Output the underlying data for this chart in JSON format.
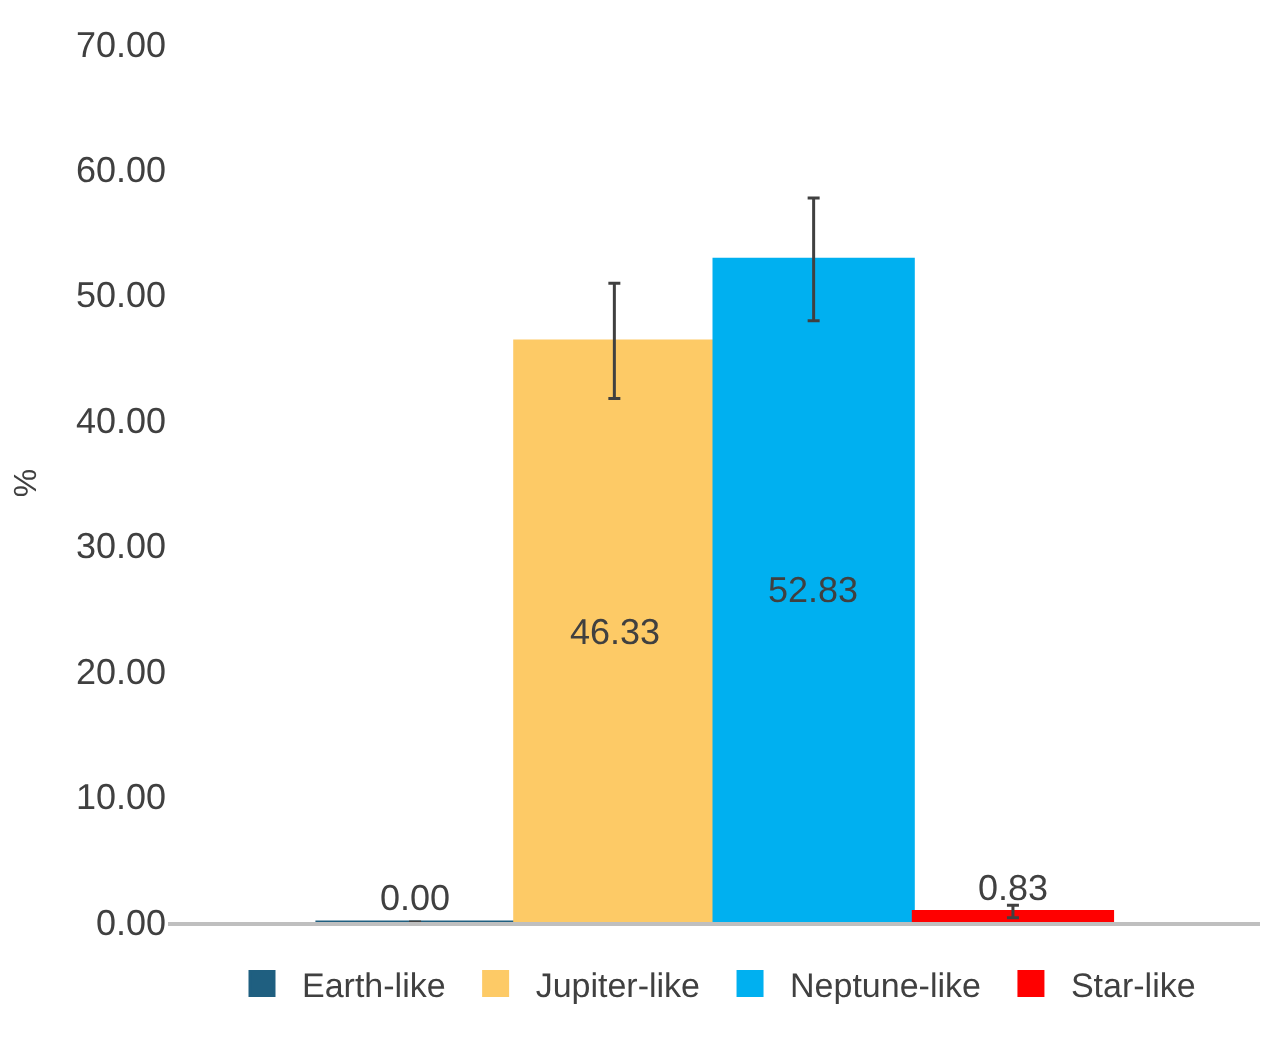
{
  "chart_data": {
    "type": "bar",
    "ylabel": "%",
    "categories": [
      null
    ],
    "series": [
      {
        "name": "Earth-like",
        "color": "#1f5f80",
        "values": [
          0.0
        ],
        "value_labels": [
          "0.00"
        ],
        "errors": [
          null
        ]
      },
      {
        "name": "Jupiter-like",
        "color": "#fdca66",
        "values": [
          46.33
        ],
        "value_labels": [
          "46.33"
        ],
        "errors": [
          4.6
        ]
      },
      {
        "name": "Neptune-like",
        "color": "#00b0f0",
        "values": [
          52.83
        ],
        "value_labels": [
          "52.83"
        ],
        "errors": [
          4.9
        ]
      },
      {
        "name": "Star-like",
        "color": "#ff0000",
        "values": [
          0.83
        ],
        "value_labels": [
          "0.83"
        ],
        "errors": [
          0.5
        ]
      }
    ],
    "ylim": [
      0,
      70
    ],
    "yticks": [
      {
        "value": 0,
        "label": "0.00"
      },
      {
        "value": 10,
        "label": "10.00"
      },
      {
        "value": 20,
        "label": "20.00"
      },
      {
        "value": 30,
        "label": "30.00"
      },
      {
        "value": 40,
        "label": "40.00"
      },
      {
        "value": 50,
        "label": "50.00"
      },
      {
        "value": 60,
        "label": "60.00"
      },
      {
        "value": 70,
        "label": "70.00"
      }
    ],
    "legend": "bottom"
  }
}
